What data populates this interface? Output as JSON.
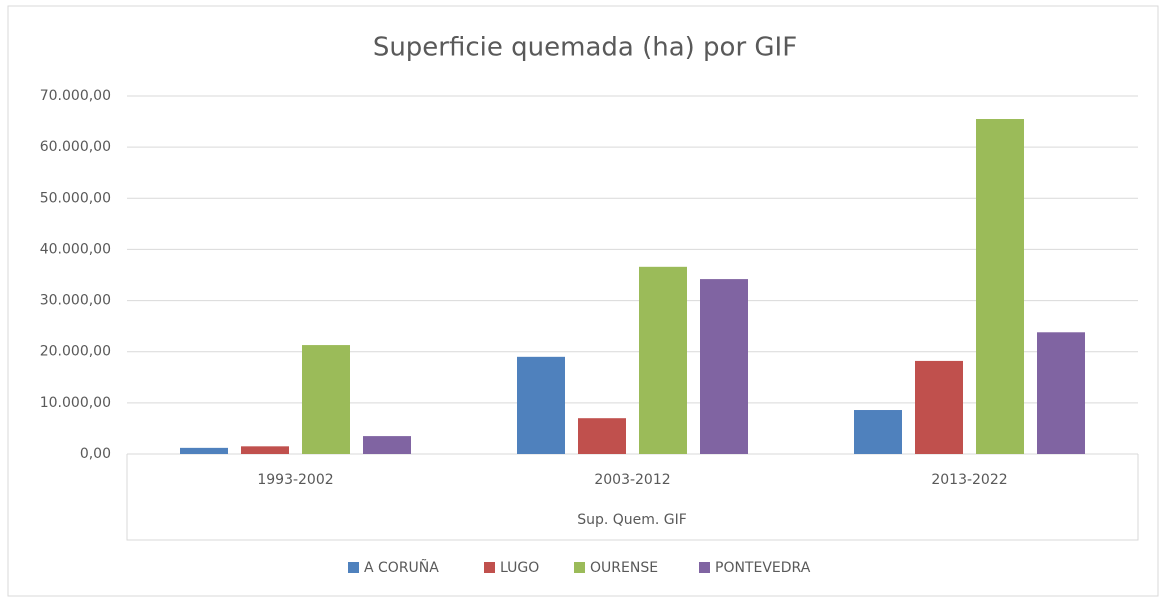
{
  "chart_data": {
    "type": "bar",
    "title": "Superficie quemada (ha) por GIF",
    "x_label": "Sup. Quem. GIF",
    "categories": [
      "1993-2002",
      "2003-2012",
      "2013-2022"
    ],
    "series": [
      {
        "name": "A CORUÑA",
        "color": "#4f81bd",
        "values": [
          1200,
          19000,
          8600
        ]
      },
      {
        "name": "LUGO",
        "color": "#c0504d",
        "values": [
          1500,
          7000,
          18200
        ]
      },
      {
        "name": "OURENSE",
        "color": "#9bbb59",
        "values": [
          21300,
          36600,
          65500
        ]
      },
      {
        "name": "PONTEVEDRA",
        "color": "#8064a2",
        "values": [
          3500,
          34200,
          23800
        ]
      }
    ],
    "ylim": [
      0,
      70000
    ],
    "yticks": [
      {
        "value": 0,
        "label": "0,00"
      },
      {
        "value": 10000,
        "label": "10.000,00"
      },
      {
        "value": 20000,
        "label": "20.000,00"
      },
      {
        "value": 30000,
        "label": "30.000,00"
      },
      {
        "value": 40000,
        "label": "40.000,00"
      },
      {
        "value": 50000,
        "label": "50.000,00"
      },
      {
        "value": 60000,
        "label": "60.000,00"
      },
      {
        "value": 70000,
        "label": "70.000,00"
      }
    ],
    "grid": true,
    "legend": "bottom"
  }
}
